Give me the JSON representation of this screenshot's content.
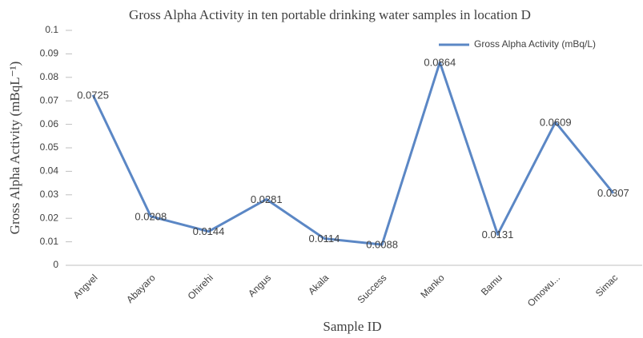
{
  "chart_data": {
    "type": "line",
    "title": "Gross Alpha Activity in ten portable drinking water samples in location D",
    "x_label": "Sample ID",
    "y_label": "Gross Alpha Activity (mBqL⁻¹)",
    "categories": [
      "Angvel",
      "Abayaro",
      "Ohirehi",
      "Angus",
      "Akala",
      "Success",
      "Manko",
      "Bamu",
      "Omowu...",
      "Simac"
    ],
    "series": [
      {
        "name": "Gross Alpha Activity (mBq/L)",
        "color": "#5b87c5",
        "values": [
          0.0725,
          0.0208,
          0.0144,
          0.0281,
          0.0114,
          0.0088,
          0.0864,
          0.0131,
          0.0609,
          0.0307
        ]
      }
    ],
    "ylim": [
      0,
      0.1
    ],
    "yticks": [
      0,
      0.01,
      0.02,
      0.03,
      0.04,
      0.05,
      0.06,
      0.07,
      0.08,
      0.09,
      0.1
    ],
    "grid": false,
    "legend": "top-right"
  }
}
